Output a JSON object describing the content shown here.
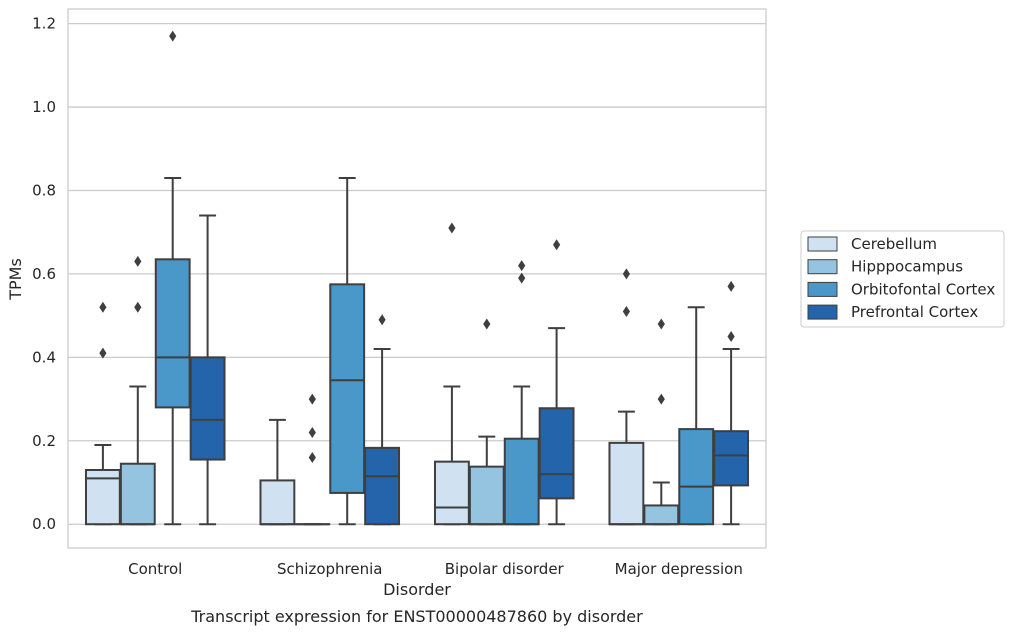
{
  "chart_data": {
    "type": "box",
    "title": "",
    "caption": "Transcript expression for ENST00000487860 by disorder",
    "xlabel": "Disorder",
    "ylabel": "TPMs",
    "categories": [
      "Control",
      "Schizophrenia",
      "Bipolar disorder",
      "Major depression"
    ],
    "ylim": [
      -0.057,
      1.235
    ],
    "yticks": [
      0.0,
      0.2,
      0.4,
      0.6,
      0.8,
      1.0,
      1.2
    ],
    "ytick_labels": [
      "0.0",
      "0.2",
      "0.4",
      "0.6",
      "0.8",
      "1.0",
      "1.2"
    ],
    "grid": "horizontal",
    "legend_position": "right",
    "series": [
      {
        "name": "Cerebellum",
        "color": "#d0e1f2",
        "boxes": [
          {
            "category": "Control",
            "whisker_low": 0.0,
            "q1": 0.0,
            "median": 0.11,
            "q3": 0.13,
            "whisker_high": 0.19,
            "outliers": [
              0.41,
              0.52
            ]
          },
          {
            "category": "Schizophrenia",
            "whisker_low": 0.0,
            "q1": 0.0,
            "median": 0.0,
            "q3": 0.105,
            "whisker_high": 0.25,
            "outliers": []
          },
          {
            "category": "Bipolar disorder",
            "whisker_low": 0.0,
            "q1": 0.0,
            "median": 0.04,
            "q3": 0.15,
            "whisker_high": 0.33,
            "outliers": [
              0.71
            ]
          },
          {
            "category": "Major depression",
            "whisker_low": 0.0,
            "q1": 0.0,
            "median": 0.0,
            "q3": 0.195,
            "whisker_high": 0.27,
            "outliers": [
              0.51,
              0.6
            ]
          }
        ]
      },
      {
        "name": "Hipppocampus",
        "color": "#94c4df",
        "boxes": [
          {
            "category": "Control",
            "whisker_low": 0.0,
            "q1": 0.0,
            "median": 0.0,
            "q3": 0.145,
            "whisker_high": 0.33,
            "outliers": [
              0.52,
              0.63
            ]
          },
          {
            "category": "Schizophrenia",
            "whisker_low": 0.0,
            "q1": 0.0,
            "median": 0.0,
            "q3": 0.0,
            "whisker_high": 0.0,
            "outliers": [
              0.16,
              0.22,
              0.3
            ]
          },
          {
            "category": "Bipolar disorder",
            "whisker_low": 0.0,
            "q1": 0.0,
            "median": 0.0,
            "q3": 0.138,
            "whisker_high": 0.21,
            "outliers": [
              0.48
            ]
          },
          {
            "category": "Major depression",
            "whisker_low": 0.0,
            "q1": 0.0,
            "median": 0.0,
            "q3": 0.045,
            "whisker_high": 0.1,
            "outliers": [
              0.3,
              0.48
            ]
          }
        ]
      },
      {
        "name": "Orbitofontal Cortex",
        "color": "#4a98c9",
        "boxes": [
          {
            "category": "Control",
            "whisker_low": 0.0,
            "q1": 0.28,
            "median": 0.4,
            "q3": 0.635,
            "whisker_high": 0.83,
            "outliers": [
              1.17
            ]
          },
          {
            "category": "Schizophrenia",
            "whisker_low": 0.0,
            "q1": 0.075,
            "median": 0.345,
            "q3": 0.575,
            "whisker_high": 0.83,
            "outliers": []
          },
          {
            "category": "Bipolar disorder",
            "whisker_low": 0.0,
            "q1": 0.0,
            "median": 0.0,
            "q3": 0.205,
            "whisker_high": 0.33,
            "outliers": [
              0.59,
              0.62
            ]
          },
          {
            "category": "Major depression",
            "whisker_low": 0.0,
            "q1": 0.0,
            "median": 0.09,
            "q3": 0.228,
            "whisker_high": 0.52,
            "outliers": []
          }
        ]
      },
      {
        "name": "Prefrontal Cortex",
        "color": "#2464ab",
        "boxes": [
          {
            "category": "Control",
            "whisker_low": 0.0,
            "q1": 0.155,
            "median": 0.25,
            "q3": 0.4,
            "whisker_high": 0.74,
            "outliers": []
          },
          {
            "category": "Schizophrenia",
            "whisker_low": 0.0,
            "q1": 0.0,
            "median": 0.115,
            "q3": 0.183,
            "whisker_high": 0.42,
            "outliers": [
              0.49
            ]
          },
          {
            "category": "Bipolar disorder",
            "whisker_low": 0.0,
            "q1": 0.062,
            "median": 0.12,
            "q3": 0.278,
            "whisker_high": 0.47,
            "outliers": [
              0.67
            ]
          },
          {
            "category": "Major depression",
            "whisker_low": 0.0,
            "q1": 0.093,
            "median": 0.165,
            "q3": 0.223,
            "whisker_high": 0.42,
            "outliers": [
              0.45,
              0.57
            ]
          }
        ]
      }
    ]
  }
}
